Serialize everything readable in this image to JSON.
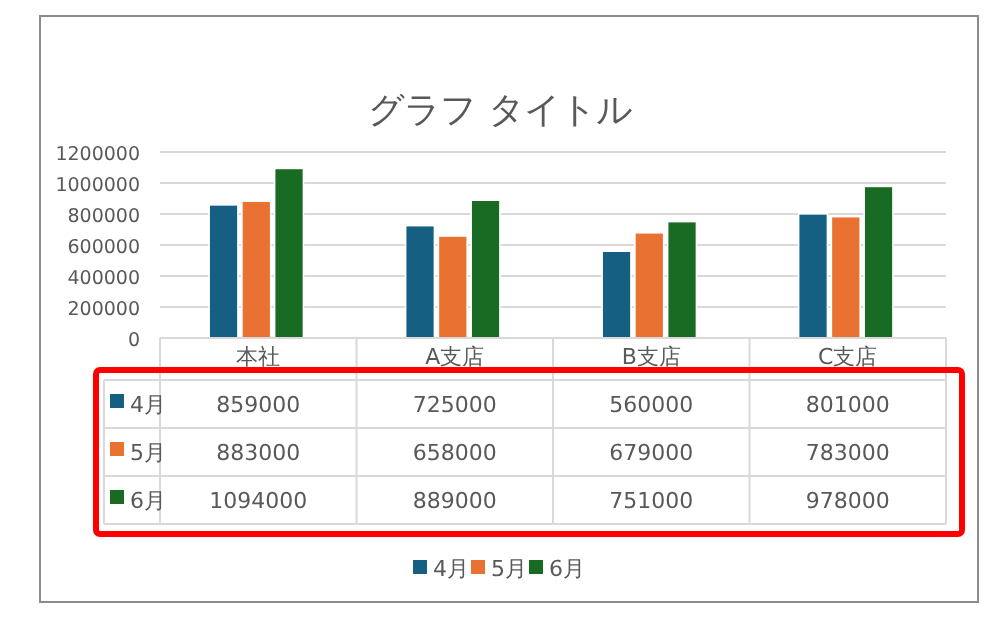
{
  "chart_data": {
    "type": "bar",
    "title": "グラフ タイトル",
    "categories": [
      "本社",
      "A支店",
      "B支店",
      "C支店"
    ],
    "series": [
      {
        "name": "4月",
        "color": "#156082",
        "values": [
          859000,
          725000,
          560000,
          801000
        ]
      },
      {
        "name": "5月",
        "color": "#e97132",
        "values": [
          883000,
          658000,
          679000,
          783000
        ]
      },
      {
        "name": "6月",
        "color": "#196b24",
        "values": [
          1094000,
          889000,
          751000,
          978000
        ]
      }
    ],
    "ylim": [
      0,
      1200000
    ],
    "yticks": [
      0,
      200000,
      400000,
      600000,
      800000,
      1000000,
      1200000
    ],
    "grid": "y",
    "legend": "bottom",
    "data_labels": true
  }
}
